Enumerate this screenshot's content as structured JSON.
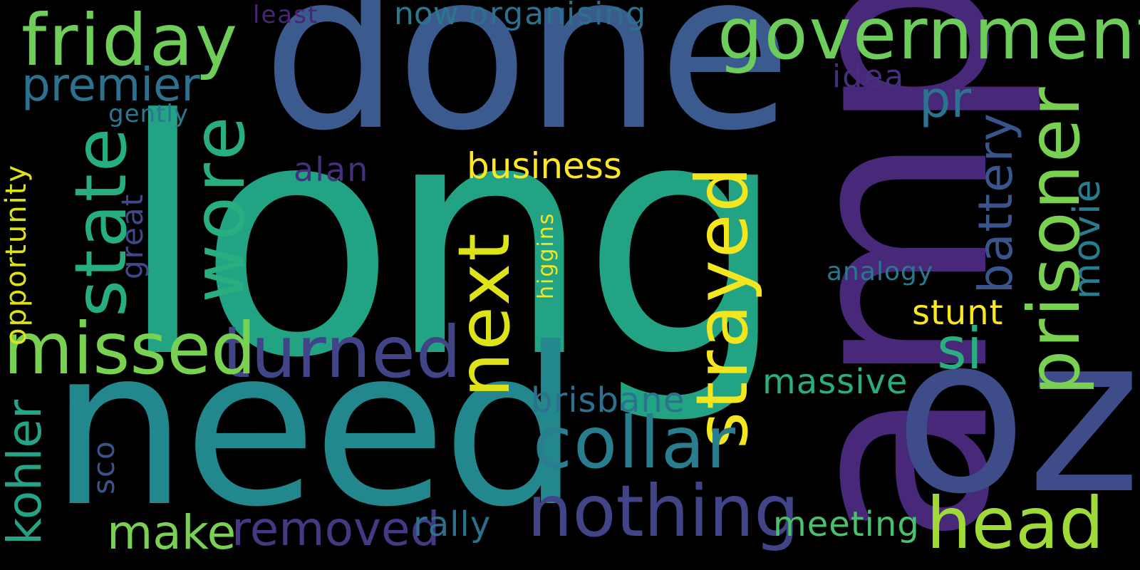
{
  "background": "#000000",
  "words": [
    {
      "text": "long",
      "color": "#22a384"
    },
    {
      "text": "amp",
      "color": "#482878"
    },
    {
      "text": "done",
      "color": "#3b5b8f"
    },
    {
      "text": "need",
      "color": "#23888e"
    },
    {
      "text": "government",
      "color": "#6ccd5a"
    },
    {
      "text": "friday",
      "color": "#6ece58"
    },
    {
      "text": "oz",
      "color": "#3e4c8a"
    },
    {
      "text": "state",
      "color": "#26ad81"
    },
    {
      "text": "wore",
      "color": "#29af7f"
    },
    {
      "text": "prisoner",
      "color": "#7ad151"
    },
    {
      "text": "strayed",
      "color": "#f3e61e"
    },
    {
      "text": "turned",
      "color": "#414487"
    },
    {
      "text": "missed",
      "color": "#79d151"
    },
    {
      "text": "nothing",
      "color": "#414487"
    },
    {
      "text": "collar",
      "color": "#287d8e"
    },
    {
      "text": "next",
      "color": "#dde318"
    },
    {
      "text": "head",
      "color": "#a0da39"
    },
    {
      "text": "premier",
      "color": "#2c718e"
    },
    {
      "text": "si",
      "color": "#2ab07f"
    },
    {
      "text": "battery",
      "color": "#3a548c"
    },
    {
      "text": "make",
      "color": "#7ad151"
    },
    {
      "text": "removed",
      "color": "#443983"
    },
    {
      "text": "kohler",
      "color": "#25a386"
    },
    {
      "text": "business",
      "color": "#fde725"
    },
    {
      "text": "pr",
      "color": "#2c738e"
    },
    {
      "text": "movie",
      "color": "#277e8e"
    },
    {
      "text": "brisbane",
      "color": "#2c718e"
    },
    {
      "text": "massive",
      "color": "#29af7f"
    },
    {
      "text": "meeting",
      "color": "#4ac16d"
    },
    {
      "text": "rally",
      "color": "#2d708e"
    },
    {
      "text": "stunt",
      "color": "#f8e621"
    },
    {
      "text": "opportunity",
      "color": "#dde318"
    },
    {
      "text": "organising",
      "color": "#2d708e"
    },
    {
      "text": "now",
      "color": "#2a778e"
    },
    {
      "text": "alan",
      "color": "#46307e"
    },
    {
      "text": "idea",
      "color": "#472f7d"
    },
    {
      "text": "great",
      "color": "#3f4889"
    },
    {
      "text": "sco",
      "color": "#3b528b"
    },
    {
      "text": "analogy",
      "color": "#2a788e"
    },
    {
      "text": "higgins",
      "color": "#f4e61e"
    },
    {
      "text": "gently",
      "color": "#2a778e"
    },
    {
      "text": "least",
      "color": "#482575"
    }
  ]
}
